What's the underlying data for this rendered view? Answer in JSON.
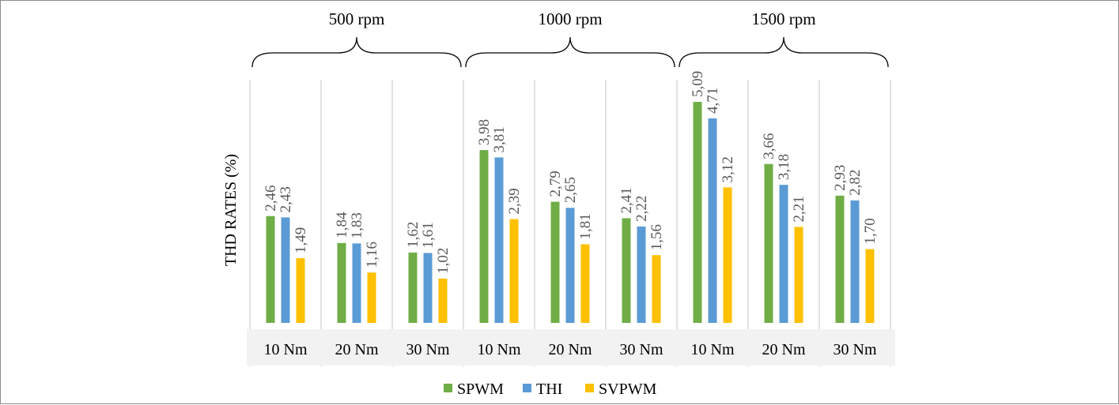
{
  "chart_data": {
    "type": "bar",
    "title": "",
    "ylabel": "THD RATES (%)",
    "xlabel": "",
    "ylim": [
      0,
      5.6
    ],
    "grid": false,
    "legend_position": "bottom",
    "groups": [
      "500 rpm",
      "1000 rpm",
      "1500 rpm"
    ],
    "categories": [
      "10 Nm",
      "20 Nm",
      "30 Nm",
      "10 Nm",
      "20 Nm",
      "30 Nm",
      "10 Nm",
      "20 Nm",
      "30 Nm"
    ],
    "series": [
      {
        "name": "SPWM",
        "color": "#70ad47",
        "values": [
          2.46,
          1.84,
          1.62,
          3.98,
          2.79,
          2.41,
          5.09,
          3.66,
          2.93
        ],
        "labels": [
          "2,46",
          "1,84",
          "1,62",
          "3,98",
          "2,79",
          "2,41",
          "5,09",
          "3,66",
          "2,93"
        ]
      },
      {
        "name": "THI",
        "color": "#5b9bd5",
        "values": [
          2.43,
          1.83,
          1.61,
          3.81,
          2.65,
          2.22,
          4.71,
          3.18,
          2.82
        ],
        "labels": [
          "2,43",
          "1,83",
          "1,61",
          "3,81",
          "2,65",
          "2,22",
          "4,71",
          "3,18",
          "2,82"
        ]
      },
      {
        "name": "SVPWM",
        "color": "#ffc000",
        "values": [
          1.49,
          1.16,
          1.02,
          2.39,
          1.81,
          1.56,
          3.12,
          2.21,
          1.7
        ],
        "labels": [
          "1,49",
          "1,16",
          "1,02",
          "2,39",
          "1,81",
          "1,56",
          "3,12",
          "2,21",
          "1,70"
        ]
      }
    ]
  }
}
